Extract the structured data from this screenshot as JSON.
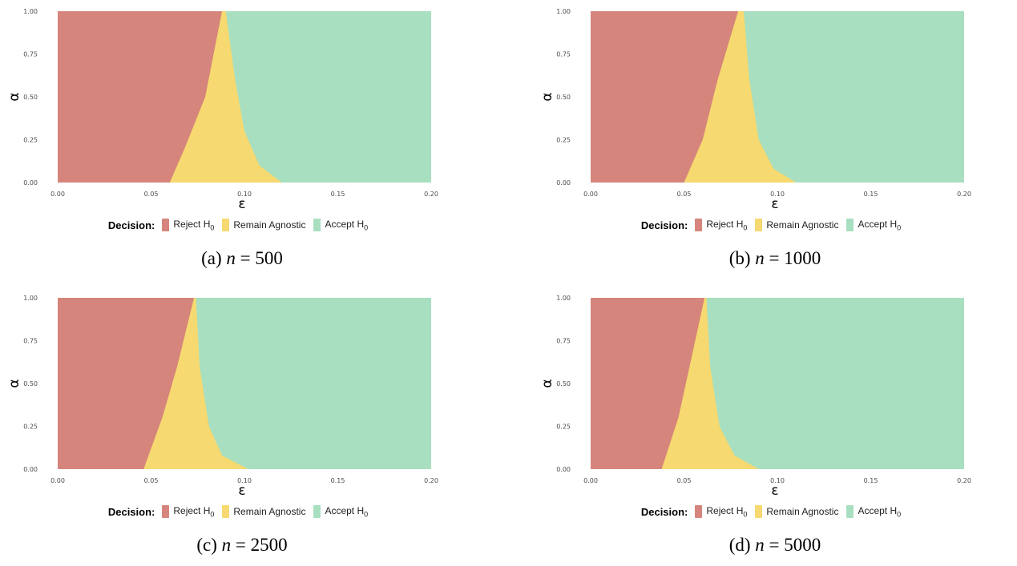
{
  "colors": {
    "reject": "#d5857c",
    "agnostic": "#f6d970",
    "accept": "#a8dfc0"
  },
  "legend": {
    "title": "Decision:",
    "items": [
      {
        "label": "Reject H",
        "sub": "0",
        "color_key": "reject"
      },
      {
        "label": "Remain Agnostic",
        "sub": "",
        "color_key": "agnostic"
      },
      {
        "label": "Accept H",
        "sub": "0",
        "color_key": "accept"
      }
    ]
  },
  "chart_data": [
    {
      "type": "area",
      "caption_prefix": "(a)",
      "caption_var": "n",
      "caption_eq": " = ",
      "caption_value": "500",
      "xlabel": "ε",
      "ylabel": "α",
      "xlim": [
        0,
        0.2
      ],
      "ylim": [
        0,
        1
      ],
      "x_ticks": [
        "0.00",
        "0.05",
        "0.10",
        "0.15",
        "0.20"
      ],
      "y_ticks": [
        "0.00",
        "0.25",
        "0.50",
        "0.75",
        "1.00"
      ],
      "reject_boundary": [
        [
          0.088,
          1.0
        ],
        [
          0.079,
          0.5
        ],
        [
          0.068,
          0.2
        ],
        [
          0.06,
          0.0
        ]
      ],
      "accept_boundary": [
        [
          0.09,
          1.0
        ],
        [
          0.095,
          0.6
        ],
        [
          0.1,
          0.3
        ],
        [
          0.108,
          0.1
        ],
        [
          0.12,
          0.0
        ]
      ]
    },
    {
      "type": "area",
      "caption_prefix": "(b)",
      "caption_var": "n",
      "caption_eq": " = ",
      "caption_value": "1000",
      "xlabel": "ε",
      "ylabel": "α",
      "xlim": [
        0,
        0.2
      ],
      "ylim": [
        0,
        1
      ],
      "x_ticks": [
        "0.00",
        "0.05",
        "0.10",
        "0.15",
        "0.20"
      ],
      "y_ticks": [
        "0.00",
        "0.25",
        "0.50",
        "0.75",
        "1.00"
      ],
      "reject_boundary": [
        [
          0.079,
          1.0
        ],
        [
          0.068,
          0.6
        ],
        [
          0.06,
          0.25
        ],
        [
          0.05,
          0.0
        ]
      ],
      "accept_boundary": [
        [
          0.082,
          1.0
        ],
        [
          0.085,
          0.6
        ],
        [
          0.09,
          0.25
        ],
        [
          0.098,
          0.08
        ],
        [
          0.11,
          0.0
        ]
      ]
    },
    {
      "type": "area",
      "caption_prefix": "(c)",
      "caption_var": "n",
      "caption_eq": " = ",
      "caption_value": "2500",
      "xlabel": "ε",
      "ylabel": "α",
      "xlim": [
        0,
        0.2
      ],
      "ylim": [
        0,
        1
      ],
      "x_ticks": [
        "0.00",
        "0.05",
        "0.10",
        "0.15",
        "0.20"
      ],
      "y_ticks": [
        "0.00",
        "0.25",
        "0.50",
        "0.75",
        "1.00"
      ],
      "reject_boundary": [
        [
          0.073,
          1.0
        ],
        [
          0.064,
          0.6
        ],
        [
          0.056,
          0.3
        ],
        [
          0.046,
          0.0
        ]
      ],
      "accept_boundary": [
        [
          0.074,
          1.0
        ],
        [
          0.076,
          0.6
        ],
        [
          0.081,
          0.25
        ],
        [
          0.088,
          0.08
        ],
        [
          0.102,
          0.0
        ]
      ]
    },
    {
      "type": "area",
      "caption_prefix": "(d)",
      "caption_var": "n",
      "caption_eq": " = ",
      "caption_value": "5000",
      "xlabel": "ε",
      "ylabel": "α",
      "xlim": [
        0,
        0.2
      ],
      "ylim": [
        0,
        1
      ],
      "x_ticks": [
        "0.00",
        "0.05",
        "0.10",
        "0.15",
        "0.20"
      ],
      "y_ticks": [
        "0.00",
        "0.25",
        "0.50",
        "0.75",
        "1.00"
      ],
      "reject_boundary": [
        [
          0.061,
          1.0
        ],
        [
          0.053,
          0.6
        ],
        [
          0.047,
          0.3
        ],
        [
          0.038,
          0.0
        ]
      ],
      "accept_boundary": [
        [
          0.062,
          1.0
        ],
        [
          0.064,
          0.6
        ],
        [
          0.069,
          0.25
        ],
        [
          0.077,
          0.08
        ],
        [
          0.09,
          0.0
        ]
      ]
    }
  ]
}
